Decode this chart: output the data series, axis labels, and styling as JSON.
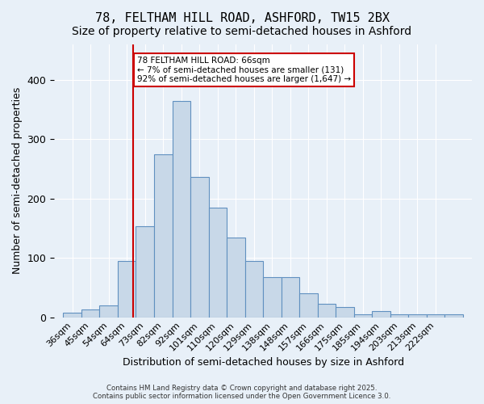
{
  "title": "78, FELTHAM HILL ROAD, ASHFORD, TW15 2BX",
  "subtitle": "Size of property relative to semi-detached houses in Ashford",
  "xlabel": "Distribution of semi-detached houses by size in Ashford",
  "ylabel": "Number of semi-detached properties",
  "bar_left_edges": [
    31.5,
    40.5,
    49.5,
    58.5,
    67.5,
    76.5,
    85.5,
    94.5,
    103.5,
    112.5,
    121.5,
    130.5,
    139.5,
    148.5,
    157.5,
    166.5,
    175.5,
    184.5,
    193.5,
    202.5,
    211.5,
    220.5
  ],
  "bar_heights": [
    8,
    13,
    20,
    95,
    153,
    275,
    365,
    236,
    185,
    135,
    95,
    68,
    68,
    40,
    22,
    17,
    5,
    10,
    5,
    5,
    5,
    5
  ],
  "bin_width": 9,
  "tick_labels": [
    "36sqm",
    "45sqm",
    "54sqm",
    "64sqm",
    "73sqm",
    "82sqm",
    "92sqm",
    "101sqm",
    "110sqm",
    "120sqm",
    "129sqm",
    "138sqm",
    "148sqm",
    "157sqm",
    "166sqm",
    "175sqm",
    "185sqm",
    "194sqm",
    "203sqm",
    "213sqm",
    "222sqm"
  ],
  "tick_positions": [
    36,
    45,
    54,
    63,
    72,
    81,
    90,
    99,
    108,
    117,
    126,
    135,
    144,
    153,
    162,
    171,
    180,
    189,
    198,
    207,
    216
  ],
  "bar_color": "#c8d8e8",
  "bar_edge_color": "#6090c0",
  "property_line_x": 66,
  "property_line_color": "#cc0000",
  "annotation_text": "78 FELTHAM HILL ROAD: 66sqm\n← 7% of semi-detached houses are smaller (131)\n92% of semi-detached houses are larger (1,647) →",
  "annotation_box_color": "#ffffff",
  "annotation_box_edge_color": "#cc0000",
  "ylim": [
    0,
    460
  ],
  "xlim": [
    27,
    234
  ],
  "background_color": "#e8f0f8",
  "footnote": "Contains HM Land Registry data © Crown copyright and database right 2025.\nContains public sector information licensed under the Open Government Licence 3.0.",
  "title_fontsize": 11,
  "subtitle_fontsize": 10,
  "axis_label_fontsize": 9,
  "tick_fontsize": 8
}
